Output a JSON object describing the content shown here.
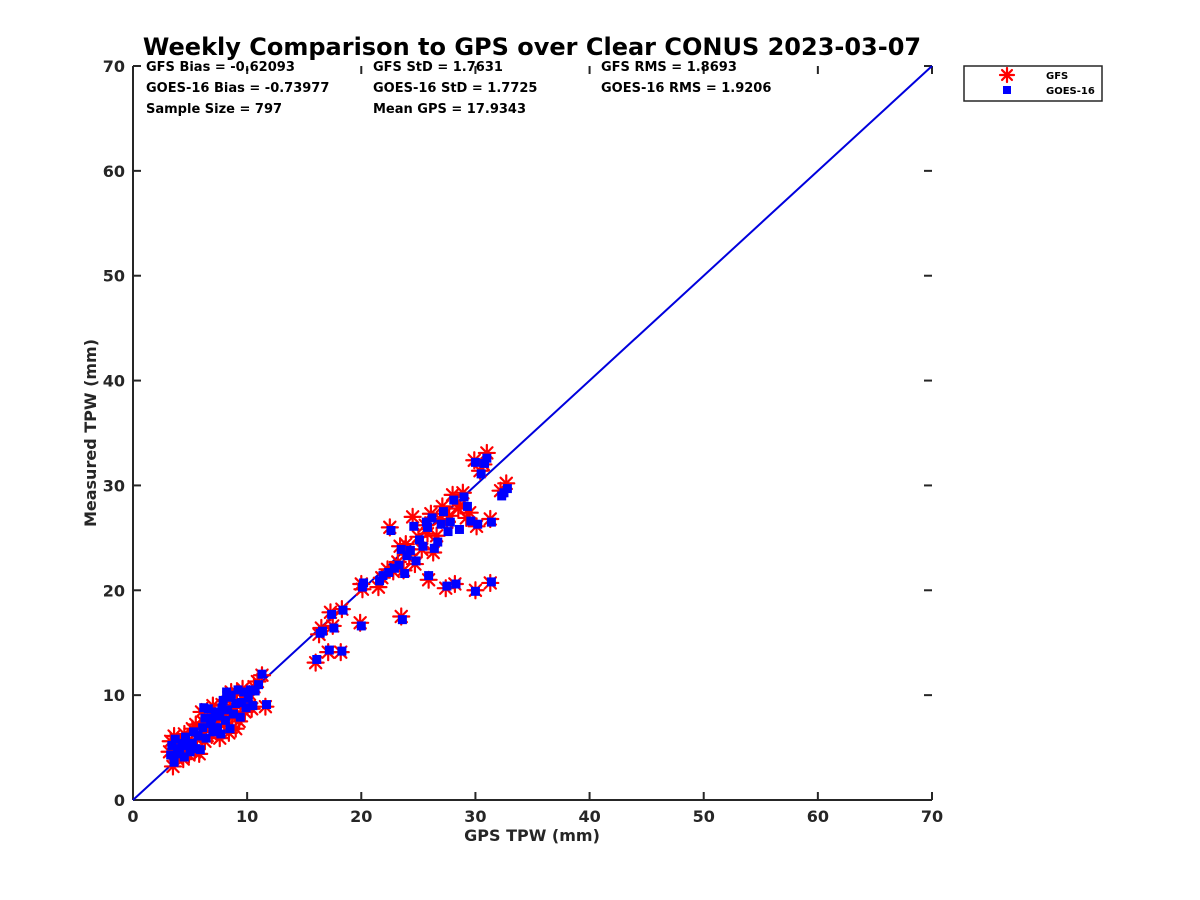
{
  "chart_data": {
    "type": "scatter",
    "title": "Weekly Comparison to GPS over Clear CONUS 2023-03-07",
    "xlabel": "GPS TPW (mm)",
    "ylabel": "Measured TPW (mm)",
    "xlim": [
      0,
      70
    ],
    "ylim": [
      0,
      70
    ],
    "xticks": [
      "0",
      "10",
      "20",
      "30",
      "40",
      "50",
      "60",
      "70"
    ],
    "yticks": [
      "0",
      "10",
      "20",
      "30",
      "40",
      "50",
      "60",
      "70"
    ],
    "grid": false,
    "legend_position": "outside-top-right",
    "reference_line": {
      "x": [
        0,
        70
      ],
      "y": [
        0,
        70
      ],
      "color": "#0000dd"
    },
    "stats": [
      [
        "GFS Bias = -0.62093",
        "GFS StD = 1.7631",
        "GFS RMS = 1.8693"
      ],
      [
        "GOES-16 Bias = -0.73977",
        "GOES-16 StD = 1.7725",
        "GOES-16 RMS = 1.9206"
      ],
      [
        "Sample Size = 797",
        "Mean GPS = 17.9343",
        ""
      ]
    ],
    "series": [
      {
        "name": "GFS",
        "marker": "asterisk",
        "color": "#ff0000",
        "points": [
          [
            3.2,
            4.6
          ],
          [
            3.3,
            5.6
          ],
          [
            3.5,
            3.2
          ],
          [
            3.6,
            6.1
          ],
          [
            3.8,
            4.0
          ],
          [
            4.0,
            5.2
          ],
          [
            4.2,
            4.7
          ],
          [
            4.4,
            3.9
          ],
          [
            4.5,
            6.3
          ],
          [
            4.7,
            5.5
          ],
          [
            4.9,
            4.3
          ],
          [
            5.1,
            5.0
          ],
          [
            5.2,
            6.8
          ],
          [
            5.4,
            4.6
          ],
          [
            5.6,
            5.8
          ],
          [
            5.8,
            4.4
          ],
          [
            6.0,
            6.5
          ],
          [
            6.2,
            7.4
          ],
          [
            6.3,
            5.6
          ],
          [
            6.5,
            8.5
          ],
          [
            6.7,
            7.0
          ],
          [
            6.9,
            6.2
          ],
          [
            7.1,
            8.0
          ],
          [
            7.3,
            6.6
          ],
          [
            7.5,
            7.7
          ],
          [
            7.6,
            5.9
          ],
          [
            7.8,
            9.1
          ],
          [
            8.0,
            7.2
          ],
          [
            8.2,
            8.3
          ],
          [
            8.4,
            6.4
          ],
          [
            8.5,
            9.6
          ],
          [
            8.7,
            7.9
          ],
          [
            8.9,
            8.8
          ],
          [
            9.1,
            10.2
          ],
          [
            9.3,
            7.5
          ],
          [
            9.4,
            9.0
          ],
          [
            9.6,
            10.6
          ],
          [
            9.8,
            8.4
          ],
          [
            10.0,
            9.4
          ],
          [
            10.2,
            10.1
          ],
          [
            10.4,
            8.7
          ],
          [
            10.6,
            10.8
          ],
          [
            10.9,
            11.3
          ],
          [
            11.3,
            11.9
          ],
          [
            11.6,
            8.9
          ],
          [
            9.0,
            6.8
          ],
          [
            5.5,
            7.2
          ],
          [
            7.0,
            9.0
          ],
          [
            6.0,
            8.4
          ],
          [
            8.6,
            10.3
          ],
          [
            16.0,
            13.1
          ],
          [
            16.3,
            15.8
          ],
          [
            16.5,
            16.4
          ],
          [
            17.1,
            14.1
          ],
          [
            17.3,
            17.9
          ],
          [
            17.5,
            16.6
          ],
          [
            18.2,
            14.1
          ],
          [
            18.3,
            18.2
          ],
          [
            19.9,
            16.9
          ],
          [
            20.0,
            20.6
          ],
          [
            20.1,
            20.1
          ],
          [
            21.5,
            20.3
          ],
          [
            21.8,
            21.2
          ],
          [
            22.3,
            22.0
          ],
          [
            22.5,
            26.0
          ],
          [
            22.8,
            21.8
          ],
          [
            23.2,
            22.7
          ],
          [
            23.4,
            24.2
          ],
          [
            23.5,
            17.5
          ],
          [
            23.7,
            21.9
          ],
          [
            23.9,
            24.4
          ],
          [
            24.2,
            23.4
          ],
          [
            24.5,
            27.0
          ],
          [
            24.7,
            22.5
          ],
          [
            25.0,
            25.1
          ],
          [
            25.3,
            23.9
          ],
          [
            25.6,
            26.2
          ],
          [
            25.9,
            21.0
          ],
          [
            26.1,
            27.3
          ],
          [
            26.3,
            23.6
          ],
          [
            26.6,
            25.2
          ],
          [
            26.9,
            26.8
          ],
          [
            27.1,
            28.0
          ],
          [
            27.4,
            20.2
          ],
          [
            27.7,
            27.1
          ],
          [
            28.0,
            29.1
          ],
          [
            28.2,
            20.6
          ],
          [
            28.5,
            27.8
          ],
          [
            28.9,
            29.3
          ],
          [
            29.2,
            26.9
          ],
          [
            29.5,
            27.4
          ],
          [
            29.9,
            32.4
          ],
          [
            30.0,
            20.0
          ],
          [
            30.1,
            26.1
          ],
          [
            30.4,
            31.4
          ],
          [
            30.7,
            32.0
          ],
          [
            31.0,
            33.1
          ],
          [
            31.3,
            26.8
          ],
          [
            31.3,
            20.7
          ],
          [
            32.2,
            29.5
          ],
          [
            32.7,
            30.2
          ],
          [
            25.8,
            25.4
          ],
          [
            27.5,
            26.5
          ],
          [
            28.7,
            28.1
          ]
        ]
      },
      {
        "name": "GOES-16",
        "marker": "square",
        "color": "#0000ff",
        "points": [
          [
            3.3,
            4.3
          ],
          [
            3.4,
            5.2
          ],
          [
            3.6,
            3.6
          ],
          [
            3.7,
            5.8
          ],
          [
            3.9,
            4.4
          ],
          [
            4.1,
            4.9
          ],
          [
            4.3,
            5.4
          ],
          [
            4.5,
            4.1
          ],
          [
            4.6,
            6.0
          ],
          [
            4.8,
            5.2
          ],
          [
            5.0,
            4.6
          ],
          [
            5.2,
            5.4
          ],
          [
            5.3,
            6.5
          ],
          [
            5.5,
            4.9
          ],
          [
            5.7,
            6.1
          ],
          [
            5.9,
            4.8
          ],
          [
            6.1,
            6.9
          ],
          [
            6.3,
            7.8
          ],
          [
            6.4,
            5.9
          ],
          [
            6.6,
            8.7
          ],
          [
            6.8,
            7.3
          ],
          [
            7.0,
            6.5
          ],
          [
            7.2,
            8.4
          ],
          [
            7.4,
            6.9
          ],
          [
            7.6,
            8.0
          ],
          [
            7.7,
            6.3
          ],
          [
            7.9,
            9.5
          ],
          [
            8.1,
            7.6
          ],
          [
            8.3,
            8.6
          ],
          [
            8.5,
            6.8
          ],
          [
            8.6,
            10.0
          ],
          [
            8.8,
            8.2
          ],
          [
            9.0,
            9.2
          ],
          [
            9.2,
            10.5
          ],
          [
            9.4,
            7.9
          ],
          [
            9.5,
            9.3
          ],
          [
            9.7,
            10.3
          ],
          [
            9.9,
            8.8
          ],
          [
            10.1,
            9.7
          ],
          [
            10.3,
            10.5
          ],
          [
            10.5,
            9.0
          ],
          [
            10.7,
            10.4
          ],
          [
            11.0,
            11.0
          ],
          [
            11.3,
            12.0
          ],
          [
            11.7,
            9.1
          ],
          [
            8.2,
            10.3
          ],
          [
            8.4,
            9.8
          ],
          [
            6.9,
            7.8
          ],
          [
            6.2,
            8.8
          ],
          [
            7.8,
            8.8
          ],
          [
            16.1,
            13.4
          ],
          [
            16.4,
            15.9
          ],
          [
            16.6,
            16.1
          ],
          [
            17.2,
            14.3
          ],
          [
            17.4,
            17.7
          ],
          [
            17.6,
            16.4
          ],
          [
            18.3,
            14.2
          ],
          [
            18.4,
            18.1
          ],
          [
            20.0,
            16.6
          ],
          [
            20.1,
            20.3
          ],
          [
            20.2,
            20.7
          ],
          [
            21.6,
            20.9
          ],
          [
            21.9,
            21.4
          ],
          [
            22.4,
            21.7
          ],
          [
            22.6,
            25.7
          ],
          [
            22.9,
            22.1
          ],
          [
            23.3,
            22.4
          ],
          [
            23.5,
            23.9
          ],
          [
            23.6,
            17.2
          ],
          [
            23.8,
            21.6
          ],
          [
            24.0,
            23.3
          ],
          [
            24.3,
            23.8
          ],
          [
            24.6,
            26.1
          ],
          [
            24.8,
            22.8
          ],
          [
            25.1,
            24.8
          ],
          [
            25.4,
            24.2
          ],
          [
            25.7,
            26.5
          ],
          [
            25.9,
            21.4
          ],
          [
            26.2,
            26.9
          ],
          [
            26.4,
            24.0
          ],
          [
            26.7,
            24.6
          ],
          [
            27.0,
            26.3
          ],
          [
            27.2,
            27.5
          ],
          [
            27.5,
            20.4
          ],
          [
            27.8,
            26.5
          ],
          [
            28.1,
            28.6
          ],
          [
            28.3,
            20.6
          ],
          [
            28.6,
            25.8
          ],
          [
            29.0,
            28.9
          ],
          [
            29.3,
            28.0
          ],
          [
            29.6,
            26.6
          ],
          [
            30.0,
            32.2
          ],
          [
            30.0,
            19.9
          ],
          [
            30.2,
            26.3
          ],
          [
            30.5,
            31.1
          ],
          [
            30.8,
            32.1
          ],
          [
            31.0,
            32.6
          ],
          [
            31.4,
            26.5
          ],
          [
            31.4,
            20.8
          ],
          [
            32.3,
            29.0
          ],
          [
            32.8,
            29.7
          ],
          [
            32.5,
            29.3
          ],
          [
            25.8,
            26.0
          ],
          [
            27.6,
            25.6
          ]
        ]
      }
    ]
  }
}
